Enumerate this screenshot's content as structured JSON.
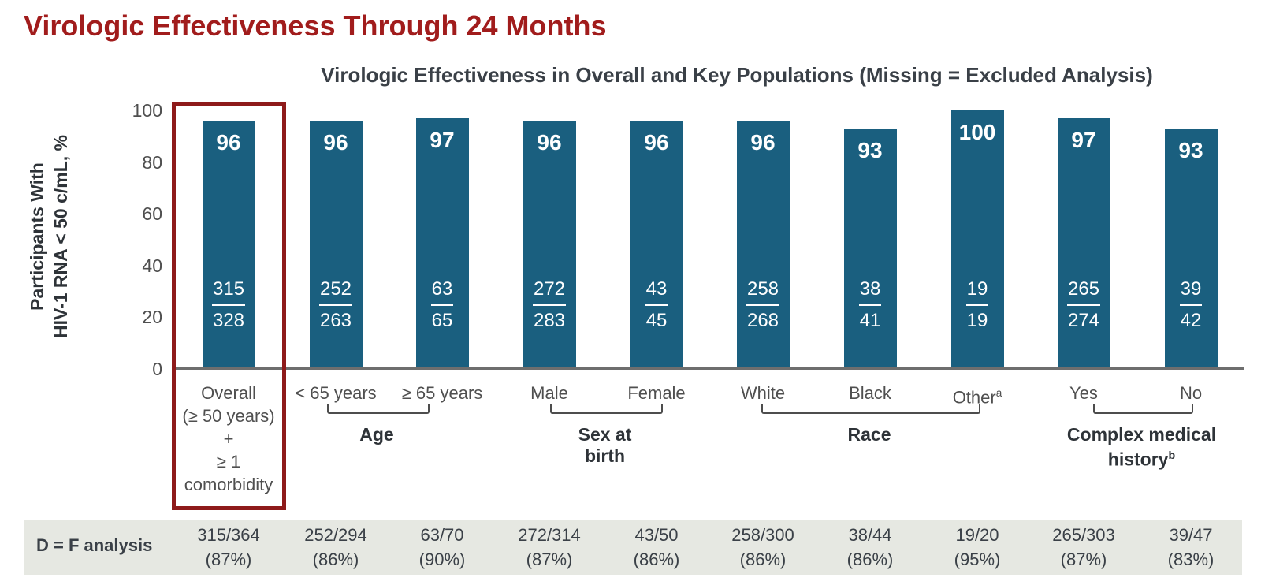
{
  "slide": {
    "title": "Virologic Effectiveness Through 24 Months"
  },
  "chart_data": {
    "type": "bar",
    "title": "Virologic Effectiveness in Overall and Key Populations (Missing = Excluded Analysis)",
    "ylabel_lines": [
      "Participants With",
      "HIV-1 RNA < 50 c/mL, %"
    ],
    "ylabel": "Participants With HIV-1 RNA < 50 c/mL, %",
    "xlabel": "",
    "ylim": [
      0,
      100
    ],
    "yticks": [
      0,
      20,
      40,
      60,
      80,
      100
    ],
    "grid": false,
    "legend": "none",
    "bar_color": "#1A5F7F",
    "bar_value_color": "#FFFFFF",
    "categories": [
      "Overall (≥ 50 years) + ≥ 1 comorbidity",
      "< 65 years",
      "≥ 65 years",
      "Male",
      "Female",
      "White",
      "Black",
      "Other",
      "Yes",
      "No"
    ],
    "values": [
      96,
      96,
      97,
      96,
      96,
      96,
      93,
      100,
      97,
      93
    ],
    "bars": [
      {
        "label_lines": [
          "Overall",
          "(≥ 50 years)",
          "+",
          "≥ 1",
          "comorbidity"
        ],
        "sup": "",
        "value": 96,
        "fraction": {
          "num": "315",
          "den": "328"
        }
      },
      {
        "label_lines": [
          "< 65 years"
        ],
        "sup": "",
        "value": 96,
        "fraction": {
          "num": "252",
          "den": "263"
        }
      },
      {
        "label_lines": [
          "≥ 65 years"
        ],
        "sup": "",
        "value": 97,
        "fraction": {
          "num": "63",
          "den": "65"
        }
      },
      {
        "label_lines": [
          "Male"
        ],
        "sup": "",
        "value": 96,
        "fraction": {
          "num": "272",
          "den": "283"
        }
      },
      {
        "label_lines": [
          "Female"
        ],
        "sup": "",
        "value": 96,
        "fraction": {
          "num": "43",
          "den": "45"
        }
      },
      {
        "label_lines": [
          "White"
        ],
        "sup": "",
        "value": 96,
        "fraction": {
          "num": "258",
          "den": "268"
        }
      },
      {
        "label_lines": [
          "Black"
        ],
        "sup": "",
        "value": 93,
        "fraction": {
          "num": "38",
          "den": "41"
        }
      },
      {
        "label_lines": [
          "Other"
        ],
        "sup": "a",
        "value": 100,
        "fraction": {
          "num": "19",
          "den": "19"
        }
      },
      {
        "label_lines": [
          "Yes"
        ],
        "sup": "",
        "value": 97,
        "fraction": {
          "num": "265",
          "den": "274"
        }
      },
      {
        "label_lines": [
          "No"
        ],
        "sup": "",
        "value": 93,
        "fraction": {
          "num": "39",
          "den": "42"
        }
      }
    ],
    "groups": [
      {
        "label_lines": [
          "Age"
        ],
        "sup": "",
        "from": 1,
        "to": 2
      },
      {
        "label_lines": [
          "Sex at",
          "birth"
        ],
        "sup": "",
        "from": 3,
        "to": 4
      },
      {
        "label_lines": [
          "Race"
        ],
        "sup": "",
        "from": 5,
        "to": 7
      },
      {
        "label_lines": [
          "Complex medical",
          "history"
        ],
        "sup": "b",
        "from": 8,
        "to": 9
      }
    ],
    "highlight": {
      "category_index": 0,
      "color": "#8E1A1A"
    }
  },
  "table": {
    "row_label": "D = F analysis",
    "cells": [
      {
        "fraction": "315/364",
        "percent": "(87%)"
      },
      {
        "fraction": "252/294",
        "percent": "(86%)"
      },
      {
        "fraction": "63/70",
        "percent": "(90%)"
      },
      {
        "fraction": "272/314",
        "percent": "(87%)"
      },
      {
        "fraction": "43/50",
        "percent": "(86%)"
      },
      {
        "fraction": "258/300",
        "percent": "(86%)"
      },
      {
        "fraction": "38/44",
        "percent": "(86%)"
      },
      {
        "fraction": "19/20",
        "percent": "(95%)"
      },
      {
        "fraction": "265/303",
        "percent": "(87%)"
      },
      {
        "fraction": "39/47",
        "percent": "(83%)"
      }
    ],
    "background": "#E6E8E2"
  },
  "colors": {
    "title_red": "#A11C1C",
    "highlight_red": "#8E1A1A",
    "bar_teal": "#1A5F7F",
    "dark_text": "#3A4047",
    "axis_text": "#4F4F4F"
  }
}
